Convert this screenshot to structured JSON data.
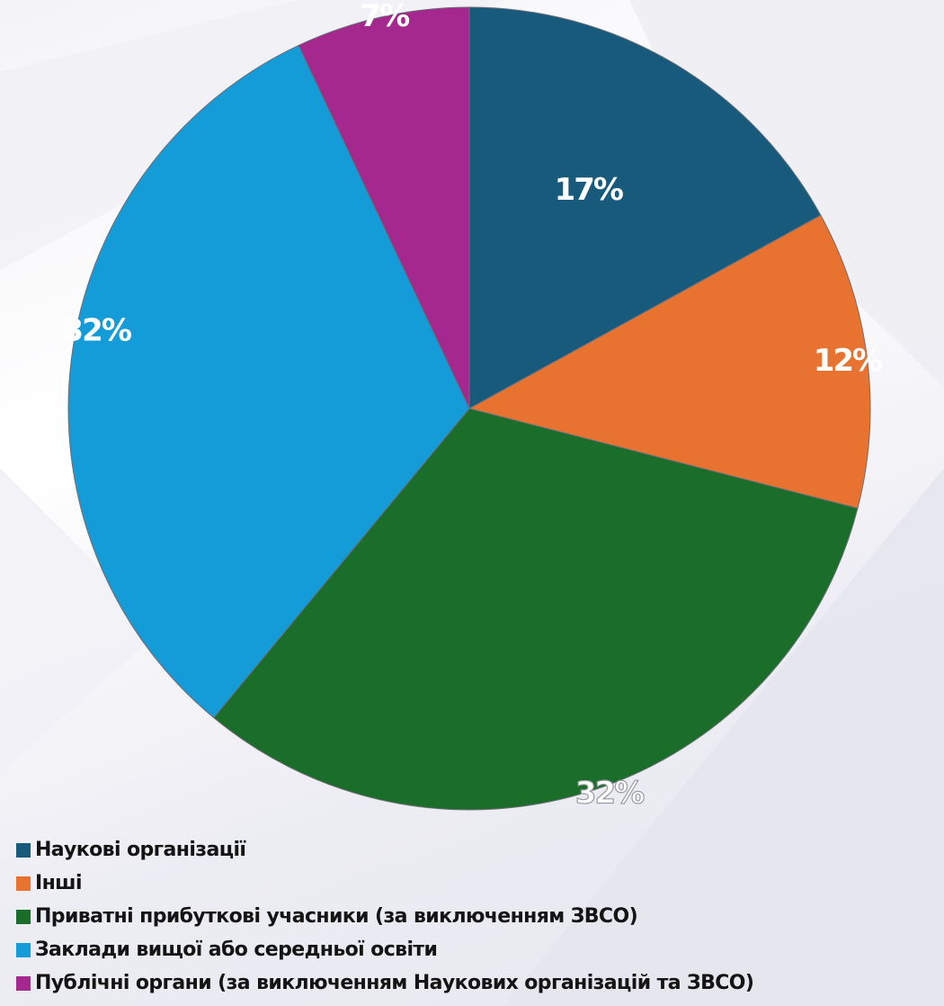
{
  "chart_data": {
    "type": "pie",
    "title": "",
    "start_angle": "top (12 o'clock), clockwise",
    "slices": [
      {
        "name": "Наукові організації",
        "value": 17,
        "label": "17%",
        "color": "#175a7c"
      },
      {
        "name": "Інші",
        "value": 12,
        "label": "12%",
        "color": "#e87330"
      },
      {
        "name": "Приватні прибуткові учасники (за виключенням ЗВСО)",
        "value": 32,
        "label": "32%",
        "color": "#1b6e2a"
      },
      {
        "name": "Заклади вищої або середньої освіти",
        "value": 32,
        "label": "32%",
        "color": "#149cd8"
      },
      {
        "name": "Публічні органи (за виключенням Наукових організацій та ЗВСО)",
        "value": 7,
        "label": "7%",
        "color": "#a4288e"
      }
    ],
    "legend_position": "bottom-left"
  }
}
